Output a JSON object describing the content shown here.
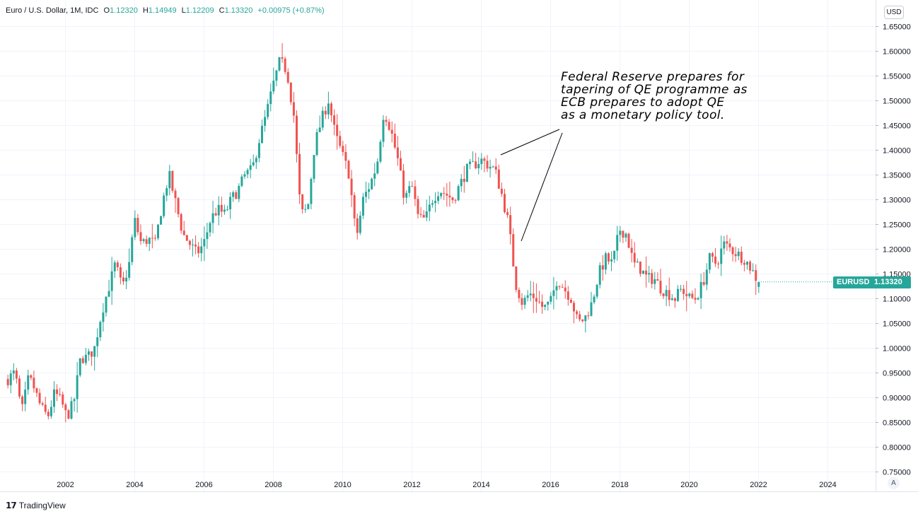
{
  "header": {
    "symbol": "Euro / U.S. Dollar, 1M, IDC",
    "o_label": "O",
    "o_value": "1.12320",
    "h_label": "H",
    "h_value": "1.14949",
    "l_label": "L",
    "l_value": "1.12209",
    "c_label": "C",
    "c_value": "1.13320",
    "change": "+0.00975 (+0.87%)"
  },
  "currency_button": "USD",
  "scale_mode_button": "A",
  "brand": "TradingView",
  "price_badge": {
    "symbol": "EURUSD",
    "price": "1.13320"
  },
  "annotation": [
    "Federal Reserve prepares for",
    "tapering of QE programme as",
    "ECB prepares to adopt QE",
    "as a monetary policy tool."
  ],
  "colors": {
    "up": "#26a69a",
    "down": "#ef5350",
    "grid": "#f0f3fa",
    "text": "#131722"
  },
  "chart_data": {
    "type": "candlestick",
    "interval": "1M",
    "ylim": [
      0.75,
      1.65
    ],
    "y_ticks": [
      "1.65000",
      "1.60000",
      "1.55000",
      "1.50000",
      "1.45000",
      "1.40000",
      "1.35000",
      "1.30000",
      "1.25000",
      "1.20000",
      "1.15000",
      "1.10000",
      "1.05000",
      "1.00000",
      "0.95000",
      "0.90000",
      "0.85000",
      "0.80000",
      "0.75000"
    ],
    "x_ticks": [
      "2002",
      "2004",
      "2006",
      "2008",
      "2010",
      "2012",
      "2014",
      "2016",
      "2018",
      "2020",
      "2022",
      "2024"
    ],
    "x_range": [
      2000.3,
      2025.8
    ],
    "last_price": 1.1332,
    "closes": [
      [
        2000.35,
        0.937
      ],
      [
        2000.55,
        0.95
      ],
      [
        2000.75,
        0.87
      ],
      [
        2000.95,
        0.94
      ],
      [
        2001.1,
        0.92
      ],
      [
        2001.3,
        0.88
      ],
      [
        2001.5,
        0.86
      ],
      [
        2001.7,
        0.91
      ],
      [
        2001.9,
        0.89
      ],
      [
        2002.05,
        0.86
      ],
      [
        2002.25,
        0.89
      ],
      [
        2002.45,
        0.98
      ],
      [
        2002.65,
        0.98
      ],
      [
        2002.85,
        1.0
      ],
      [
        2003.05,
        1.07
      ],
      [
        2003.25,
        1.12
      ],
      [
        2003.45,
        1.17
      ],
      [
        2003.65,
        1.12
      ],
      [
        2003.85,
        1.17
      ],
      [
        2004.0,
        1.26
      ],
      [
        2004.2,
        1.21
      ],
      [
        2004.4,
        1.22
      ],
      [
        2004.6,
        1.21
      ],
      [
        2004.8,
        1.29
      ],
      [
        2005.0,
        1.35
      ],
      [
        2005.2,
        1.29
      ],
      [
        2005.4,
        1.23
      ],
      [
        2005.6,
        1.21
      ],
      [
        2005.8,
        1.19
      ],
      [
        2006.0,
        1.21
      ],
      [
        2006.2,
        1.26
      ],
      [
        2006.4,
        1.28
      ],
      [
        2006.6,
        1.27
      ],
      [
        2006.8,
        1.3
      ],
      [
        2007.0,
        1.32
      ],
      [
        2007.2,
        1.35
      ],
      [
        2007.4,
        1.36
      ],
      [
        2007.6,
        1.42
      ],
      [
        2007.8,
        1.47
      ],
      [
        2008.0,
        1.53
      ],
      [
        2008.2,
        1.58
      ],
      [
        2008.4,
        1.56
      ],
      [
        2008.6,
        1.47
      ],
      [
        2008.8,
        1.27
      ],
      [
        2009.0,
        1.28
      ],
      [
        2009.2,
        1.41
      ],
      [
        2009.4,
        1.46
      ],
      [
        2009.6,
        1.5
      ],
      [
        2009.8,
        1.43
      ],
      [
        2010.0,
        1.39
      ],
      [
        2010.2,
        1.35
      ],
      [
        2010.4,
        1.22
      ],
      [
        2010.6,
        1.3
      ],
      [
        2010.8,
        1.33
      ],
      [
        2011.0,
        1.37
      ],
      [
        2011.2,
        1.48
      ],
      [
        2011.4,
        1.44
      ],
      [
        2011.6,
        1.38
      ],
      [
        2011.8,
        1.3
      ],
      [
        2012.0,
        1.33
      ],
      [
        2012.2,
        1.26
      ],
      [
        2012.4,
        1.26
      ],
      [
        2012.6,
        1.3
      ],
      [
        2012.8,
        1.32
      ],
      [
        2013.0,
        1.31
      ],
      [
        2013.2,
        1.3
      ],
      [
        2013.4,
        1.33
      ],
      [
        2013.6,
        1.36
      ],
      [
        2013.8,
        1.37
      ],
      [
        2014.0,
        1.38
      ],
      [
        2014.2,
        1.37
      ],
      [
        2014.4,
        1.36
      ],
      [
        2014.6,
        1.31
      ],
      [
        2014.8,
        1.25
      ],
      [
        2015.0,
        1.13
      ],
      [
        2015.2,
        1.09
      ],
      [
        2015.4,
        1.11
      ],
      [
        2015.6,
        1.1
      ],
      [
        2015.8,
        1.08
      ],
      [
        2016.0,
        1.09
      ],
      [
        2016.2,
        1.14
      ],
      [
        2016.4,
        1.12
      ],
      [
        2016.6,
        1.1
      ],
      [
        2016.8,
        1.05
      ],
      [
        2017.0,
        1.06
      ],
      [
        2017.2,
        1.09
      ],
      [
        2017.4,
        1.15
      ],
      [
        2017.6,
        1.18
      ],
      [
        2017.8,
        1.17
      ],
      [
        2018.0,
        1.24
      ],
      [
        2018.2,
        1.23
      ],
      [
        2018.4,
        1.17
      ],
      [
        2018.6,
        1.16
      ],
      [
        2018.8,
        1.14
      ],
      [
        2019.0,
        1.14
      ],
      [
        2019.2,
        1.12
      ],
      [
        2019.4,
        1.11
      ],
      [
        2019.6,
        1.1
      ],
      [
        2019.8,
        1.12
      ],
      [
        2020.0,
        1.1
      ],
      [
        2020.2,
        1.1
      ],
      [
        2020.4,
        1.13
      ],
      [
        2020.6,
        1.18
      ],
      [
        2020.8,
        1.17
      ],
      [
        2021.0,
        1.21
      ],
      [
        2021.2,
        1.2
      ],
      [
        2021.4,
        1.19
      ],
      [
        2021.6,
        1.18
      ],
      [
        2021.8,
        1.16
      ],
      [
        2022.0,
        1.1332
      ]
    ]
  }
}
